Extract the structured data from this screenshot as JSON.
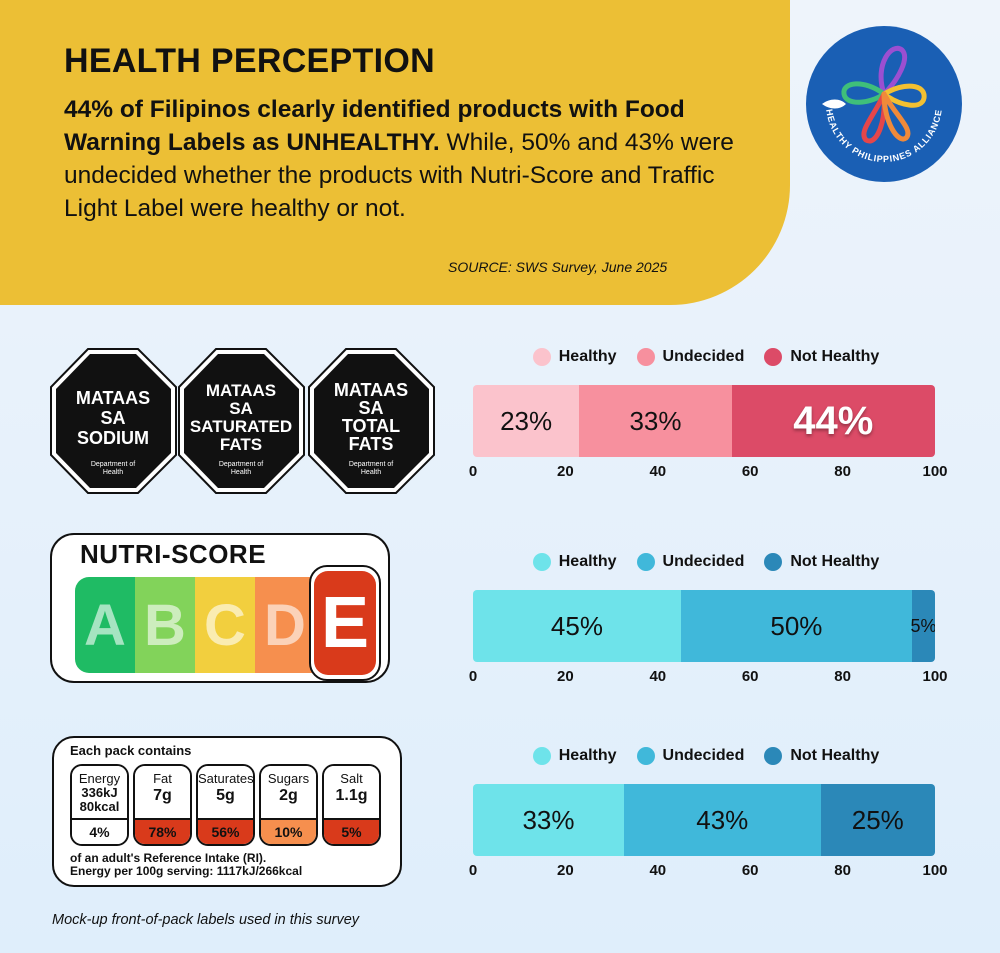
{
  "header": {
    "title": "HEALTH PERCEPTION",
    "lead_bold": "44% of Filipinos clearly identified products with Food Warning Labels as UNHEALTHY.",
    "lead_rest": " While, 50% and 43% were undecided whether the products with Nutri-Score and Traffic Light Label were healthy or not.",
    "source": "SOURCE: SWS Survey, June 2025"
  },
  "logo": {
    "text": "HEALTHY PHILIPPINES ALLIANCE",
    "bg": "#1a5fb4"
  },
  "warning_labels": {
    "items": [
      {
        "lines": [
          "MATAAS",
          "SA",
          "SODIUM"
        ]
      },
      {
        "lines": [
          "MATAAS",
          "SA",
          "SATURATED",
          "FATS"
        ]
      },
      {
        "lines": [
          "MATAAS",
          "SA",
          "TOTAL",
          "FATS"
        ]
      }
    ],
    "footer_line1": "Department of",
    "footer_line2": "Health"
  },
  "nutri_score": {
    "title": "NUTRI-SCORE",
    "grades": [
      {
        "letter": "A",
        "color": "#1fbb64"
      },
      {
        "letter": "B",
        "color": "#82d35a"
      },
      {
        "letter": "C",
        "color": "#f2cf3e"
      },
      {
        "letter": "D",
        "color": "#f68f4e"
      },
      {
        "letter": "E",
        "color": "#d93a1b"
      }
    ]
  },
  "traffic_light": {
    "heading": "Each pack contains",
    "cells": [
      {
        "name": "Energy",
        "value1": "336kJ",
        "value2": "80kcal",
        "pct": "4%",
        "color": "#ffffff"
      },
      {
        "name": "Fat",
        "value1": "7g",
        "value2": "",
        "pct": "78%",
        "color": "#d93a1b"
      },
      {
        "name": "Saturates",
        "value1": "5g",
        "value2": "",
        "pct": "56%",
        "color": "#d93a1b"
      },
      {
        "name": "Sugars",
        "value1": "2g",
        "value2": "",
        "pct": "10%",
        "color": "#f68f4e"
      },
      {
        "name": "Salt",
        "value1": "1.1g",
        "value2": "",
        "pct": "5%",
        "color": "#d93a1b"
      }
    ],
    "footer_line1": "of an adult's Reference Intake (RI).",
    "footer_line2": "Energy per 100g serving: 1117kJ/266kcal"
  },
  "chart_data": [
    {
      "type": "bar",
      "orientation": "horizontal-stacked",
      "label_type": "Food Warning Labels",
      "categories": [
        "Healthy",
        "Undecided",
        "Not Healthy"
      ],
      "values": [
        23,
        33,
        44
      ],
      "value_labels": [
        "23%",
        "33%",
        "44%"
      ],
      "colors": [
        "#fbc3cc",
        "#f7909e",
        "#dc4b67"
      ],
      "xlim": [
        0,
        100
      ],
      "ticks": [
        "0",
        "20",
        "40",
        "60",
        "80",
        "100"
      ]
    },
    {
      "type": "bar",
      "orientation": "horizontal-stacked",
      "label_type": "Nutri-Score",
      "categories": [
        "Healthy",
        "Undecided",
        "Not Healthy"
      ],
      "values": [
        45,
        50,
        5
      ],
      "value_labels": [
        "45%",
        "50%",
        "5%"
      ],
      "colors": [
        "#6ee3ea",
        "#40b8da",
        "#2b88b8"
      ],
      "xlim": [
        0,
        100
      ],
      "ticks": [
        "0",
        "20",
        "40",
        "60",
        "80",
        "100"
      ]
    },
    {
      "type": "bar",
      "orientation": "horizontal-stacked",
      "label_type": "Traffic Light Label",
      "categories": [
        "Healthy",
        "Undecided",
        "Not Healthy"
      ],
      "values": [
        33,
        43,
        25
      ],
      "value_labels": [
        "33%",
        "43%",
        "25%"
      ],
      "colors": [
        "#6ee3ea",
        "#40b8da",
        "#2b88b8"
      ],
      "xlim": [
        0,
        100
      ],
      "ticks": [
        "0",
        "20",
        "40",
        "60",
        "80",
        "100"
      ]
    }
  ],
  "footnote": "Mock-up front-of-pack labels used in this survey"
}
